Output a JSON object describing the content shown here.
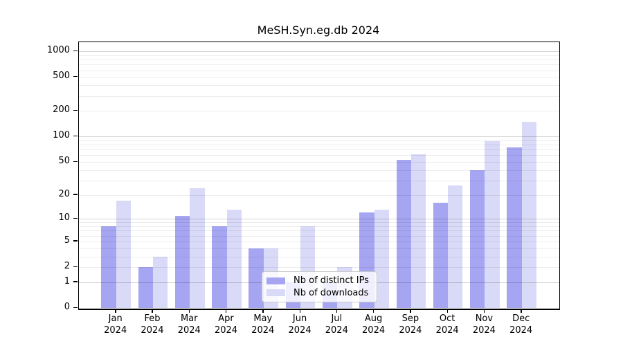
{
  "title": "MeSH.Syn.eg.db 2024",
  "chart_data": {
    "type": "bar",
    "title": "MeSH.Syn.eg.db 2024",
    "categories": [
      "Jan",
      "Feb",
      "Mar",
      "Apr",
      "May",
      "Jun",
      "Jul",
      "Aug",
      "Sep",
      "Oct",
      "Nov",
      "Dec"
    ],
    "category_year": "2024",
    "series": [
      {
        "name": "Nb of distinct IPs",
        "color": "#a5a5f2",
        "values": [
          8,
          2,
          11,
          8,
          4,
          1,
          1,
          12,
          53,
          16,
          40,
          74
        ]
      },
      {
        "name": "Nb of downloads",
        "color": "#d9d9f8",
        "values": [
          17,
          3,
          24,
          13,
          4,
          8,
          2,
          13,
          62,
          26,
          88,
          150
        ]
      }
    ],
    "y_axis": {
      "scale": "log1p",
      "ticks": [
        0,
        1,
        2,
        5,
        10,
        20,
        50,
        100,
        200,
        500,
        1000
      ],
      "ylim": [
        0,
        1300
      ]
    },
    "grid": {
      "enabled": true,
      "major_lines": [
        1,
        10,
        100,
        1000
      ],
      "minor_lines_per_decade": [
        2,
        3,
        4,
        5,
        6,
        7,
        8,
        9
      ]
    },
    "legend_position": "bottom-center",
    "frame_color": "#000000",
    "major_grid_color": "#c9c9c9",
    "minor_grid_color": "#ececec"
  }
}
